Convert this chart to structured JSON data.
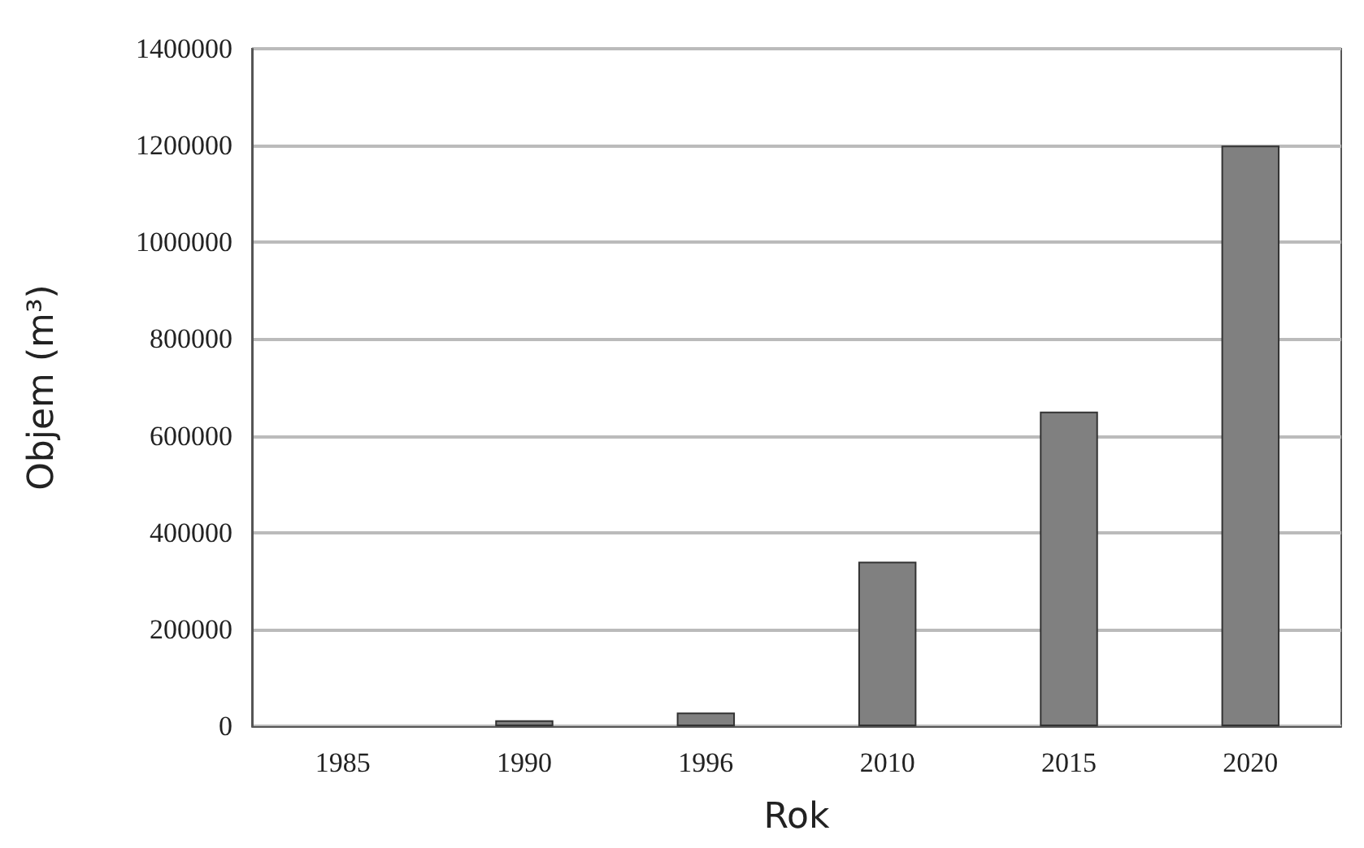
{
  "chart_data": {
    "type": "bar",
    "xlabel": "Rok",
    "ylabel": "Objem (m³)",
    "categories": [
      "1985",
      "1990",
      "1996",
      "2010",
      "2015",
      "2020"
    ],
    "values": [
      null,
      12000,
      28000,
      340000,
      650000,
      1200000
    ],
    "color": "#808080",
    "ylim": [
      0,
      1400000
    ],
    "yticks": [
      0,
      200000,
      400000,
      600000,
      800000,
      1000000,
      1200000,
      1400000
    ],
    "grid": "y"
  }
}
